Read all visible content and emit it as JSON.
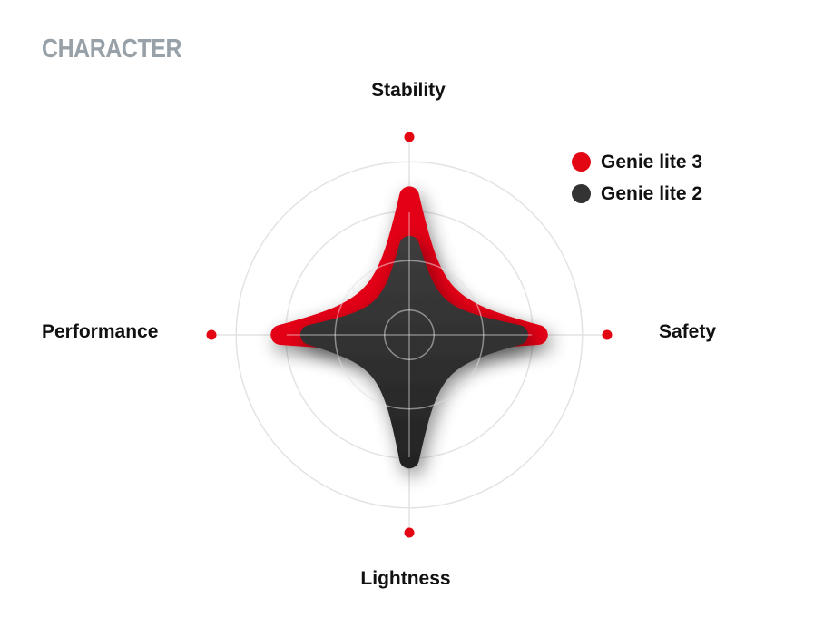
{
  "page": {
    "title": "CHARACTER"
  },
  "chart_data": {
    "type": "radar",
    "axes": [
      "Stability",
      "Safety",
      "Lightness",
      "Performance"
    ],
    "scale": {
      "min": 0,
      "max": 4,
      "rings": [
        0.5,
        1.5,
        2.5,
        3.5
      ]
    },
    "series": [
      {
        "name": "Genie lite 3",
        "color": "#e30613",
        "values": [
          2.8,
          2.6,
          0.7,
          2.6
        ]
      },
      {
        "name": "Genie lite 2",
        "color": "#333333",
        "values": [
          1.8,
          2.2,
          2.5,
          2.0
        ]
      }
    ],
    "axis_marker_color": "#e30613",
    "grid": true,
    "legend_position": "top-right"
  }
}
